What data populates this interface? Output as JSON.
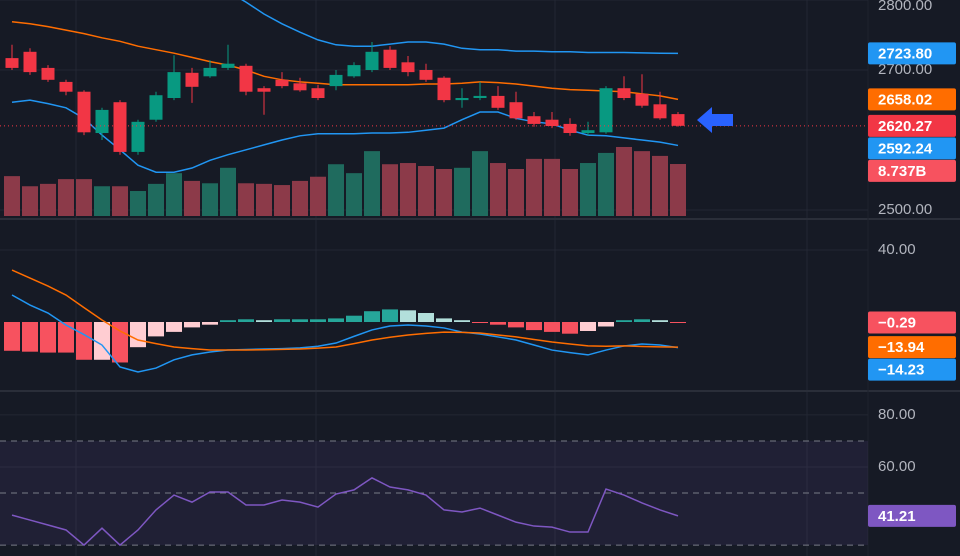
{
  "chart_data": [
    {
      "type": "candlestick",
      "open": [
        2717,
        2726,
        2703,
        2683,
        2669,
        2610,
        2654,
        2583,
        2629,
        2660,
        2696,
        2691,
        2703,
        2706,
        2674,
        2686,
        2681,
        2674,
        2677,
        2691,
        2700,
        2729,
        2711,
        2700,
        2689,
        2657,
        2660,
        2663,
        2654,
        2634,
        2629,
        2623,
        2610,
        2611,
        2674,
        2666,
        2651,
        2637
      ],
      "high": [
        2736,
        2731,
        2707,
        2686,
        2671,
        2646,
        2657,
        2629,
        2669,
        2721,
        2703,
        2714,
        2736,
        2709,
        2677,
        2697,
        2689,
        2679,
        2700,
        2711,
        2740,
        2734,
        2720,
        2709,
        2691,
        2674,
        2683,
        2677,
        2669,
        2640,
        2640,
        2631,
        2626,
        2677,
        2691,
        2694,
        2669,
        2640
      ],
      "low": [
        2700,
        2693,
        2683,
        2664,
        2607,
        2600,
        2579,
        2579,
        2626,
        2657,
        2653,
        2689,
        2700,
        2664,
        2636,
        2674,
        2669,
        2657,
        2671,
        2689,
        2697,
        2700,
        2691,
        2683,
        2654,
        2646,
        2657,
        2643,
        2629,
        2619,
        2617,
        2606,
        2606,
        2609,
        2657,
        2646,
        2629,
        2619
      ],
      "close": [
        2703,
        2697,
        2686,
        2669,
        2611,
        2643,
        2583,
        2626,
        2664,
        2697,
        2676,
        2703,
        2709,
        2669,
        2669,
        2677,
        2671,
        2660,
        2693,
        2707,
        2726,
        2703,
        2697,
        2686,
        2657,
        2660,
        2663,
        2646,
        2631,
        2623,
        2620,
        2610,
        2614,
        2674,
        2660,
        2649,
        2631,
        2620.27
      ],
      "last_label": "2620.27",
      "up_color": "#089981",
      "down_color": "#f23645",
      "label_color": "#f23645",
      "volume": {
        "values": [
          6.7,
          5.0,
          5.4,
          6.2,
          6.2,
          5.0,
          5.0,
          4.2,
          5.4,
          7.2,
          5.9,
          5.5,
          8.1,
          5.5,
          5.4,
          5.2,
          5.9,
          6.6,
          8.7,
          7.2,
          10.9,
          8.7,
          8.9,
          8.4,
          7.9,
          8.1,
          10.9,
          8.9,
          7.9,
          9.6,
          9.6,
          7.9,
          8.9,
          10.6,
          11.6,
          10.9,
          10.1,
          8.737
        ],
        "last_label": "8.737B",
        "ylim": [
          0,
          36.3
        ],
        "up_color": "#1f6b5e",
        "down_color": "#8c3a49",
        "label_color": "#f7525f"
      },
      "series": [
        {
          "color": "#2196f3",
          "values": [
            null,
            null,
            null,
            null,
            null,
            null,
            null,
            null,
            null,
            null,
            null,
            null,
            2812,
            2797,
            2780,
            2766,
            2754,
            2743,
            2736,
            2734,
            2734,
            2737,
            2740,
            2740,
            2737,
            2731,
            2729,
            2729,
            2727,
            2727,
            2726,
            2726,
            2725,
            2725,
            2725,
            2724.5,
            2724,
            2723.8
          ],
          "last_label": "2723.80"
        },
        {
          "color": "#ff6d00",
          "values": [
            2769,
            2766,
            2762,
            2757,
            2752,
            2746,
            2741,
            2734,
            2729,
            2724,
            2718,
            2712,
            2707,
            2700,
            2691,
            2686,
            2683,
            2681,
            2679,
            2679,
            2679,
            2679,
            2679,
            2680,
            2680,
            2681,
            2683,
            2682,
            2680,
            2677,
            2674,
            2672,
            2671,
            2670,
            2669,
            2666,
            2663,
            2658.02
          ],
          "last_label": "2658.02"
        },
        {
          "color": "#2196f3",
          "values": [
            2654,
            2657,
            2652,
            2646,
            2631,
            2607,
            2586,
            2564,
            2554,
            2554,
            2560,
            2571,
            2579,
            2586,
            2593,
            2600,
            2606,
            2609,
            2609,
            2609,
            2610,
            2610,
            2611,
            2614,
            2617,
            2629,
            2640,
            2640,
            2631,
            2626,
            2623,
            2614,
            2607,
            2606,
            2603,
            2600,
            2597,
            2592.24
          ],
          "last_label": "2592.24"
        }
      ],
      "ylim": [
        2488.6,
        2800
      ],
      "yticks": [
        {
          "value": 2800,
          "label": "2800.00"
        },
        {
          "value": 2700,
          "label": "2700.00"
        },
        {
          "value": 2500,
          "label": "2500.00"
        }
      ],
      "grid": true
    },
    {
      "type": "macd",
      "histogram": {
        "values": [
          -16,
          -16.5,
          -17,
          -17,
          -21,
          -21,
          -22.5,
          -14,
          -8,
          -5.5,
          -3,
          -1.5,
          1,
          1.5,
          1,
          1.5,
          1.5,
          1.5,
          2,
          3.5,
          6,
          7,
          6.5,
          5,
          2,
          1,
          -0.5,
          -1.5,
          -3,
          -4.5,
          -5.5,
          -6.5,
          -5,
          -2.5,
          1,
          1.5,
          1,
          -0.29
        ],
        "colors": [
          "#f7525f",
          "#f7525f",
          "#f7525f",
          "#f7525f",
          "#f7525f",
          "#ffcdd2",
          "#f7525f",
          "#ffcdd2",
          "#ffcdd2",
          "#ffcdd2",
          "#ffcdd2",
          "#ffcdd2",
          "#26a69a",
          "#26a69a",
          "#b2dfdb",
          "#26a69a",
          "#26a69a",
          "#26a69a",
          "#26a69a",
          "#26a69a",
          "#26a69a",
          "#26a69a",
          "#b2dfdb",
          "#b2dfdb",
          "#b2dfdb",
          "#b2dfdb",
          "#f7525f",
          "#f7525f",
          "#f7525f",
          "#f7525f",
          "#f7525f",
          "#f7525f",
          "#ffcdd2",
          "#ffcdd2",
          "#26a69a",
          "#26a69a",
          "#b2dfdb",
          "#f7525f"
        ],
        "last_label": "−0.29",
        "label_color": "#f7525f"
      },
      "series": [
        {
          "color": "#2196f3",
          "values": [
            15,
            9.4,
            5,
            -1.7,
            -7,
            -12.8,
            -25,
            -27.8,
            -25.6,
            -21,
            -18.3,
            -16.7,
            -15.6,
            -15.3,
            -15,
            -14.8,
            -14.4,
            -13.5,
            -11.7,
            -8,
            -4.4,
            -2.2,
            -1.7,
            -2.2,
            -3.3,
            -5.6,
            -6.7,
            -8.3,
            -10,
            -12.8,
            -15.6,
            -17,
            -18.3,
            -15.6,
            -13.3,
            -12.2,
            -12.8,
            -14.23
          ],
          "last_label": "−14.23"
        },
        {
          "color": "#ff6d00",
          "values": [
            28.9,
            24.4,
            20,
            15,
            8,
            1.1,
            -5,
            -10,
            -12,
            -13.9,
            -14.8,
            -15.6,
            -15.6,
            -15.6,
            -15.4,
            -15.2,
            -15,
            -14.5,
            -13.9,
            -12,
            -10,
            -8.5,
            -7.2,
            -6.3,
            -5.6,
            -5.8,
            -6.1,
            -7.2,
            -8.3,
            -9.7,
            -11.1,
            -12.2,
            -13.3,
            -13.5,
            -13.3,
            -13.6,
            -13.8,
            -13.94
          ],
          "last_label": "−13.94"
        }
      ],
      "ylim": [
        -37.8,
        56.7
      ],
      "yticks": [
        {
          "value": 40,
          "label": "40.00"
        }
      ],
      "grid": true
    },
    {
      "type": "rsi",
      "series": [
        {
          "color": "#7e57c2",
          "values": [
            41.5,
            39.6,
            37.7,
            35.8,
            30,
            36.5,
            30,
            35.8,
            43.5,
            49.2,
            46.5,
            50.4,
            50.4,
            45.4,
            45.4,
            47.3,
            46.5,
            44.6,
            49.6,
            51.2,
            55.8,
            52.3,
            51.2,
            49.2,
            43.5,
            42.7,
            44.2,
            41.5,
            38.8,
            37.3,
            36.9,
            35,
            35,
            51.5,
            49.2,
            46.2,
            43.5,
            41.21
          ],
          "last_label": "41.21"
        }
      ],
      "levels": [
        70,
        50,
        30
      ],
      "band": [
        30,
        70
      ],
      "band_color": "#7e57c2",
      "ylim": [
        25.8,
        88.8
      ],
      "yticks": [
        {
          "value": 80,
          "label": "80.00"
        },
        {
          "value": 60,
          "label": "60.00"
        }
      ],
      "grid": true
    }
  ]
}
